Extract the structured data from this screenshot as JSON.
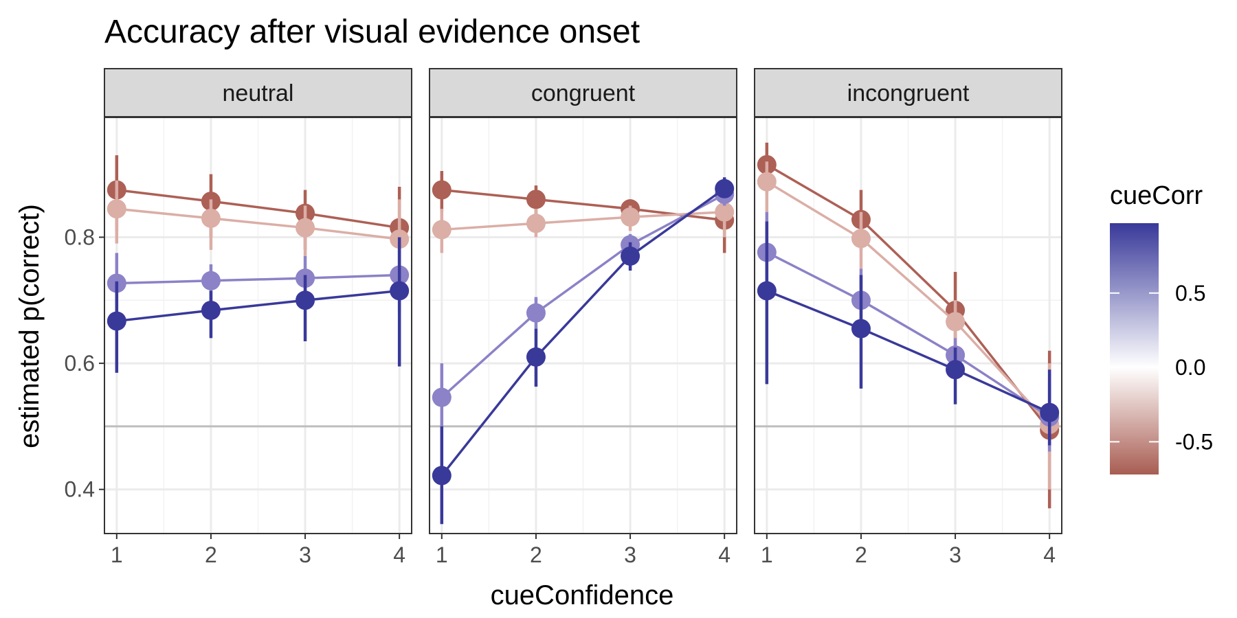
{
  "chart_data": {
    "type": "line",
    "title": "Accuracy after visual evidence onset",
    "xlabel": "cueConfidence",
    "ylabel": "estimated p(correct)",
    "x": [
      1,
      2,
      3,
      4
    ],
    "x_ticks": [
      "1",
      "2",
      "3",
      "4"
    ],
    "ylim": [
      0.33,
      0.99
    ],
    "y_ticks": [
      "0.4",
      "0.6",
      "0.8"
    ],
    "reference_line": 0.5,
    "grid": true,
    "legend": {
      "title": "cueCorr",
      "placement": "right",
      "type": "colorbar",
      "range": [
        -0.72,
        0.97
      ],
      "ticks": [
        "-0.5",
        "0.0",
        "0.5"
      ],
      "tick_values": [
        -0.5,
        0.0,
        0.5
      ],
      "colors": {
        "low": "#a85d52",
        "mid": "#ffffff",
        "high": "#39399a"
      }
    },
    "panels": [
      {
        "label": "neutral",
        "series": [
          {
            "cueCorr": -0.65,
            "color": "#ad6055",
            "values": [
              0.875,
              0.857,
              0.838,
              0.815
            ],
            "lower": [
              0.81,
              0.8,
              0.78,
              0.75
            ],
            "upper": [
              0.93,
              0.9,
              0.875,
              0.88
            ]
          },
          {
            "cueCorr": -0.35,
            "color": "#dbaea6",
            "values": [
              0.845,
              0.83,
              0.815,
              0.797
            ],
            "lower": [
              0.79,
              0.78,
              0.77,
              0.74
            ],
            "upper": [
              0.89,
              0.86,
              0.85,
              0.86
            ]
          },
          {
            "cueCorr": 0.55,
            "color": "#8b82c7",
            "values": [
              0.727,
              0.731,
              0.735,
              0.74
            ],
            "lower": [
              0.67,
              0.7,
              0.7,
              0.68
            ],
            "upper": [
              0.775,
              0.757,
              0.77,
              0.79
            ]
          },
          {
            "cueCorr": 0.95,
            "color": "#39399a",
            "values": [
              0.667,
              0.684,
              0.7,
              0.715
            ],
            "lower": [
              0.585,
              0.64,
              0.635,
              0.595
            ],
            "upper": [
              0.73,
              0.715,
              0.74,
              0.8
            ]
          }
        ]
      },
      {
        "label": "congruent",
        "series": [
          {
            "cueCorr": -0.65,
            "color": "#ad6055",
            "values": [
              0.875,
              0.86,
              0.845,
              0.827
            ],
            "lower": [
              0.84,
              0.835,
              0.83,
              0.775
            ],
            "upper": [
              0.905,
              0.882,
              0.86,
              0.86
            ]
          },
          {
            "cueCorr": -0.35,
            "color": "#dbaea6",
            "values": [
              0.812,
              0.822,
              0.832,
              0.84
            ],
            "lower": [
              0.775,
              0.8,
              0.81,
              0.8
            ],
            "upper": [
              0.845,
              0.845,
              0.85,
              0.87
            ]
          },
          {
            "cueCorr": 0.55,
            "color": "#8b82c7",
            "values": [
              0.546,
              0.68,
              0.788,
              0.868
            ],
            "lower": [
              0.5,
              0.655,
              0.77,
              0.85
            ],
            "upper": [
              0.6,
              0.705,
              0.805,
              0.885
            ]
          },
          {
            "cueCorr": 0.95,
            "color": "#39399a",
            "values": [
              0.422,
              0.61,
              0.77,
              0.877
            ],
            "lower": [
              0.345,
              0.563,
              0.747,
              0.862
            ],
            "upper": [
              0.5,
              0.655,
              0.792,
              0.895
            ]
          }
        ]
      },
      {
        "label": "incongruent",
        "series": [
          {
            "cueCorr": -0.65,
            "color": "#ad6055",
            "values": [
              0.915,
              0.828,
              0.684,
              0.494
            ],
            "lower": [
              0.87,
              0.78,
              0.64,
              0.37
            ],
            "upper": [
              0.95,
              0.875,
              0.745,
              0.62
            ]
          },
          {
            "cueCorr": -0.35,
            "color": "#dbaea6",
            "values": [
              0.888,
              0.798,
              0.666,
              0.503
            ],
            "lower": [
              0.84,
              0.75,
              0.625,
              0.4
            ],
            "upper": [
              0.92,
              0.84,
              0.7,
              0.6
            ]
          },
          {
            "cueCorr": 0.55,
            "color": "#8b82c7",
            "values": [
              0.776,
              0.7,
              0.613,
              0.515
            ],
            "lower": [
              0.7,
              0.65,
              0.58,
              0.46
            ],
            "upper": [
              0.84,
              0.75,
              0.64,
              0.57
            ]
          },
          {
            "cueCorr": 0.95,
            "color": "#39399a",
            "values": [
              0.715,
              0.655,
              0.59,
              0.522
            ],
            "lower": [
              0.567,
              0.56,
              0.535,
              0.47
            ],
            "upper": [
              0.825,
              0.74,
              0.625,
              0.59
            ]
          }
        ]
      }
    ]
  }
}
